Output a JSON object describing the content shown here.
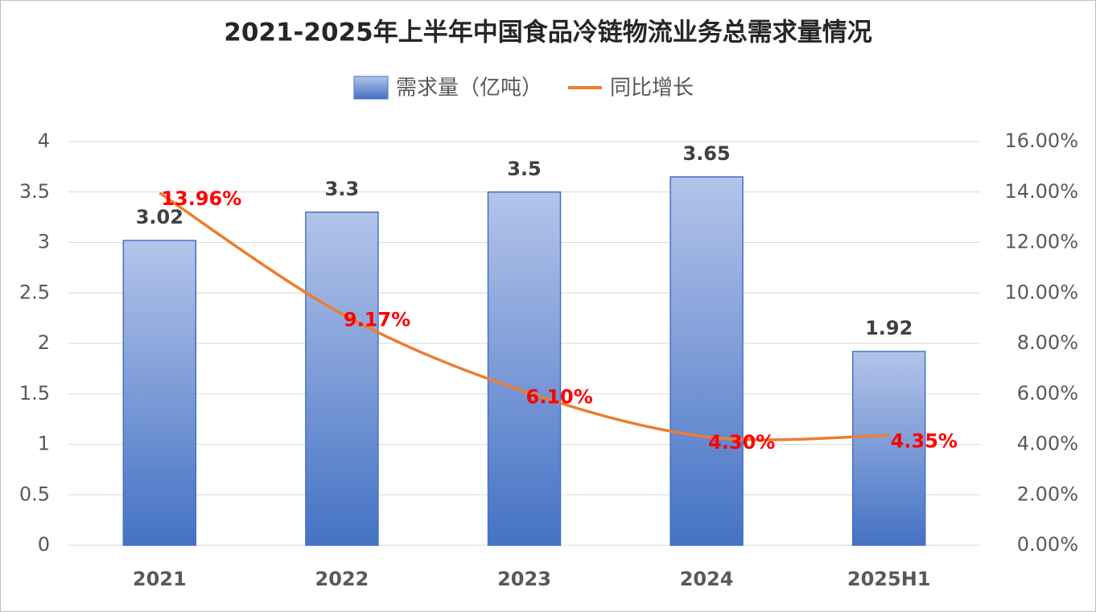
{
  "chart_data": {
    "type": "bar-line",
    "title": "2021-2025年上半年中国食品冷链物流业务总需求量情况",
    "categories": [
      "2021",
      "2022",
      "2023",
      "2024",
      "2025H1"
    ],
    "series": [
      {
        "name": "需求量（亿吨）",
        "type": "bar",
        "color": "#4472c4",
        "values": [
          3.02,
          3.3,
          3.5,
          3.65,
          1.92
        ]
      },
      {
        "name": "同比增长",
        "type": "line",
        "axis": "y2",
        "color": "#ed7d31",
        "label_color": "#ff0000",
        "values": [
          13.96,
          9.17,
          6.1,
          4.3,
          4.35
        ],
        "value_labels": [
          "13.96%",
          "9.17%",
          "6.10%",
          "4.30%",
          "4.35%"
        ]
      }
    ],
    "ylim": [
      0,
      4
    ],
    "yticks": [
      0,
      0.5,
      1,
      1.5,
      2,
      2.5,
      3,
      3.5,
      4
    ],
    "y2lim": [
      0,
      16
    ],
    "y2ticks": [
      {
        "value": 0,
        "label": "0.00%"
      },
      {
        "value": 2,
        "label": "2.00%"
      },
      {
        "value": 4,
        "label": "4.00%"
      },
      {
        "value": 6,
        "label": "6.00%"
      },
      {
        "value": 8,
        "label": "8.00%"
      },
      {
        "value": 10,
        "label": "10.00%"
      },
      {
        "value": 12,
        "label": "12.00%"
      },
      {
        "value": 14,
        "label": "14.00%"
      },
      {
        "value": 16,
        "label": "16.00%"
      }
    ],
    "grid": true,
    "legend": "top"
  }
}
